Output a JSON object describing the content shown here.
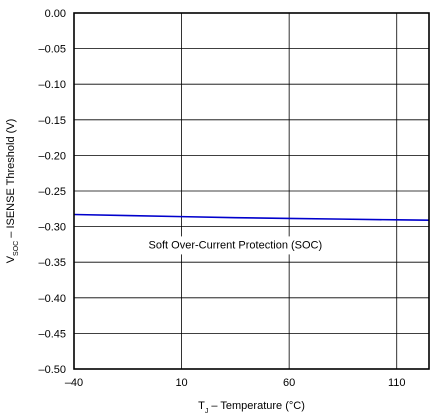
{
  "chart_data": {
    "type": "line",
    "title": "",
    "xlabel": {
      "prefix": "T",
      "sub": "J",
      "suffix": " – Temperature (°C)"
    },
    "ylabel": {
      "prefix": "V",
      "sub": "SOC",
      "suffix": " – ISENSE Threshold (V)"
    },
    "xlim": [
      -40,
      125
    ],
    "ylim": [
      -0.5,
      0.0
    ],
    "x_ticks": [
      -40,
      10,
      60,
      110
    ],
    "x_tick_labels": [
      "–40",
      "10",
      "60",
      "110"
    ],
    "y_ticks": [
      0.0,
      -0.05,
      -0.1,
      -0.15,
      -0.2,
      -0.25,
      -0.3,
      -0.35,
      -0.4,
      -0.45,
      -0.5
    ],
    "y_tick_labels": [
      "0.00",
      "–0.05",
      "–0.10",
      "–0.15",
      "–0.20",
      "–0.25",
      "–0.30",
      "–0.35",
      "–0.40",
      "–0.45",
      "–0.50"
    ],
    "grid": true,
    "series": [
      {
        "x": [
          -40,
          -15,
          10,
          35,
          60,
          85,
          110,
          125
        ],
        "y": [
          -0.283,
          -0.2845,
          -0.286,
          -0.2875,
          -0.2885,
          -0.2895,
          -0.2905,
          -0.291
        ],
        "color": "#0000cc"
      }
    ],
    "annotations": [
      {
        "text": "Soft Over-Current Protection (SOC)",
        "x": 35,
        "y": -0.325
      }
    ]
  }
}
